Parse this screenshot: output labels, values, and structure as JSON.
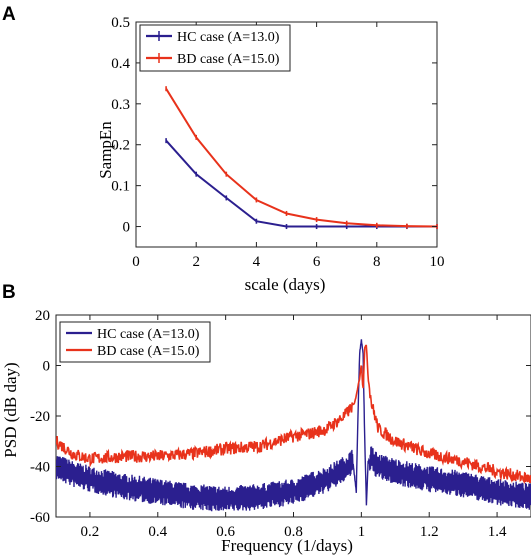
{
  "panels": [
    {
      "letter": "A"
    },
    {
      "letter": "B"
    }
  ],
  "chart_data": [
    {
      "type": "line",
      "panel": "A",
      "title": "",
      "xlabel": "scale (days)",
      "ylabel": "SampEn",
      "xlim": [
        0,
        10
      ],
      "ylim": [
        -0.05,
        0.5
      ],
      "xticks": [
        0,
        2,
        4,
        6,
        8,
        10
      ],
      "xtick_labels": [
        "0",
        "2",
        "4",
        "6",
        "8",
        "10"
      ],
      "yticks": [
        0,
        0.1,
        0.2,
        0.3,
        0.4,
        0.5
      ],
      "ytick_labels": [
        "0",
        "0.1",
        "0.2",
        "0.3",
        "0.4",
        "0.5"
      ],
      "grid": false,
      "legend_position": "top-left",
      "x": [
        1,
        2,
        3,
        4,
        5,
        6,
        7,
        8,
        9,
        10
      ],
      "series": [
        {
          "name": "HC case (A=13.0)",
          "color": "#2b1f8f",
          "values": [
            0.21,
            0.128,
            0.07,
            0.013,
            0.0,
            0.0,
            0.0,
            0.0,
            0.0,
            0.0
          ]
        },
        {
          "name": "BD case (A=15.0)",
          "color": "#e8321b",
          "values": [
            0.337,
            0.218,
            0.128,
            0.065,
            0.032,
            0.017,
            0.008,
            0.003,
            0.001,
            0.0
          ]
        }
      ]
    },
    {
      "type": "line",
      "panel": "B",
      "title": "",
      "xlabel": "Frequency (1/days)",
      "ylabel": "PSD (dB day)",
      "xlim": [
        0.1,
        1.5
      ],
      "ylim": [
        -60,
        20
      ],
      "xticks": [
        0.2,
        0.4,
        0.6,
        0.8,
        1.0,
        1.2,
        1.4
      ],
      "xtick_labels": [
        "0.2",
        "0.4",
        "0.6",
        "0.8",
        "1",
        "1.2",
        "1.4"
      ],
      "yticks": [
        -60,
        -40,
        -20,
        0,
        20
      ],
      "ytick_labels": [
        "-60",
        "-40",
        "-20",
        "0",
        "20"
      ],
      "grid": false,
      "legend_position": "top-left",
      "series": [
        {
          "name": "HC case (A=13.0)",
          "color": "#2b1f8f",
          "envelope": {
            "x": [
              0.1,
              0.15,
              0.2,
              0.3,
              0.4,
              0.5,
              0.6,
              0.7,
              0.8,
              0.9,
              0.95,
              0.975,
              0.985,
              0.99,
              0.995,
              1.0,
              1.005,
              1.01,
              1.015,
              1.02,
              1.03,
              1.05,
              1.1,
              1.2,
              1.3,
              1.4,
              1.5
            ],
            "values": [
              -40,
              -43,
              -45,
              -48,
              -50,
              -52,
              -53,
              -52,
              -50,
              -45,
              -41,
              -38,
              -50,
              -20,
              5,
              10,
              5,
              -30,
              -55,
              -38,
              -37,
              -40,
              -42,
              -45,
              -47,
              -50,
              -52
            ]
          },
          "noise_db": 3.5
        },
        {
          "name": "BD case (A=15.0)",
          "color": "#e8321b",
          "envelope": {
            "x": [
              0.1,
              0.15,
              0.2,
              0.3,
              0.4,
              0.5,
              0.6,
              0.7,
              0.8,
              0.85,
              0.9,
              0.95,
              0.98,
              0.995,
              1.0,
              1.005,
              1.01,
              1.015,
              1.02,
              1.03,
              1.05,
              1.1,
              1.2,
              1.3,
              1.4,
              1.5
            ],
            "values": [
              -30,
              -35,
              -37,
              -36,
              -36,
              -35,
              -33,
              -32,
              -28,
              -27,
              -25,
              -20,
              -15,
              -5,
              1,
              -10,
              7,
              8,
              -5,
              -15,
              -25,
              -30,
              -35,
              -38,
              -42,
              -45
            ]
          },
          "noise_db": 2.5
        }
      ]
    }
  ]
}
